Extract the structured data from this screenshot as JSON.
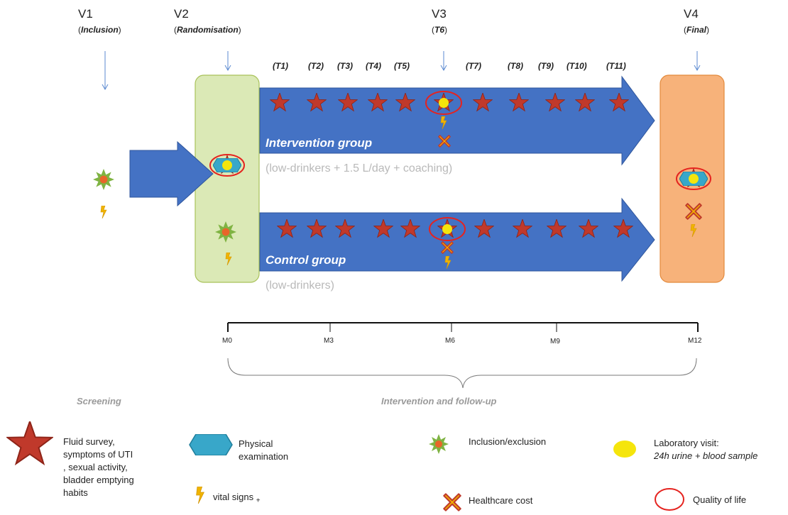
{
  "visits": [
    {
      "code": "V1",
      "label": "Inclusion"
    },
    {
      "code": "V2",
      "label": "Randomisation"
    },
    {
      "code": "V3",
      "label": "T6"
    },
    {
      "code": "V4",
      "label": "Final"
    }
  ],
  "time_points": [
    "(T1)",
    "(T2)",
    "(T3)",
    "(T4)",
    "(T5)",
    "(T7)",
    "(T8)",
    "(T9)",
    "(T10)",
    "(T11)"
  ],
  "groups": {
    "intervention": {
      "name": "Intervention group",
      "description": "(low-drinkers + 1.5 L/day + coaching)"
    },
    "control": {
      "name": "Control group",
      "description": "(low-drinkers)"
    }
  },
  "timeline": {
    "ticks": [
      "M0",
      "M3",
      "M6",
      "M9",
      "M12"
    ]
  },
  "phases": {
    "screening": "Screening",
    "intervention": "Intervention and follow-up"
  },
  "legend": {
    "star": {
      "lines": [
        "Fluid survey,",
        "symptoms of UTI",
        ", sexual activity,",
        "bladder emptying",
        "habits"
      ]
    },
    "hexagon": {
      "lines": [
        "Physical",
        "examination"
      ]
    },
    "bolt": {
      "text": "vital signs",
      "suffix": "+"
    },
    "burst": {
      "text": "Inclusion/exclusion"
    },
    "cross": {
      "text": "Healthcare cost"
    },
    "yellow_dot": {
      "line1": "Laboratory visit:",
      "line2": "24h urine + blood sample"
    },
    "circle": {
      "text": "Quality of life"
    }
  },
  "colors": {
    "arrow_blue": "#4472c4",
    "star_red": "#c0392b",
    "randomisation_box": "#dbe9b6",
    "final_box": "#f7b27a",
    "hexagon": "#38a7c9",
    "lab_yellow": "#f5e50c",
    "qol_circle": "#e5231f",
    "burst_green": "#7fb342",
    "burst_center": "#e8662a",
    "cross_orange": "#f0b400"
  },
  "icons": [
    "star-icon",
    "hexagon-icon",
    "yellow-dot-icon",
    "red-circle-icon",
    "burst-icon",
    "bolt-icon",
    "cross-icon"
  ]
}
